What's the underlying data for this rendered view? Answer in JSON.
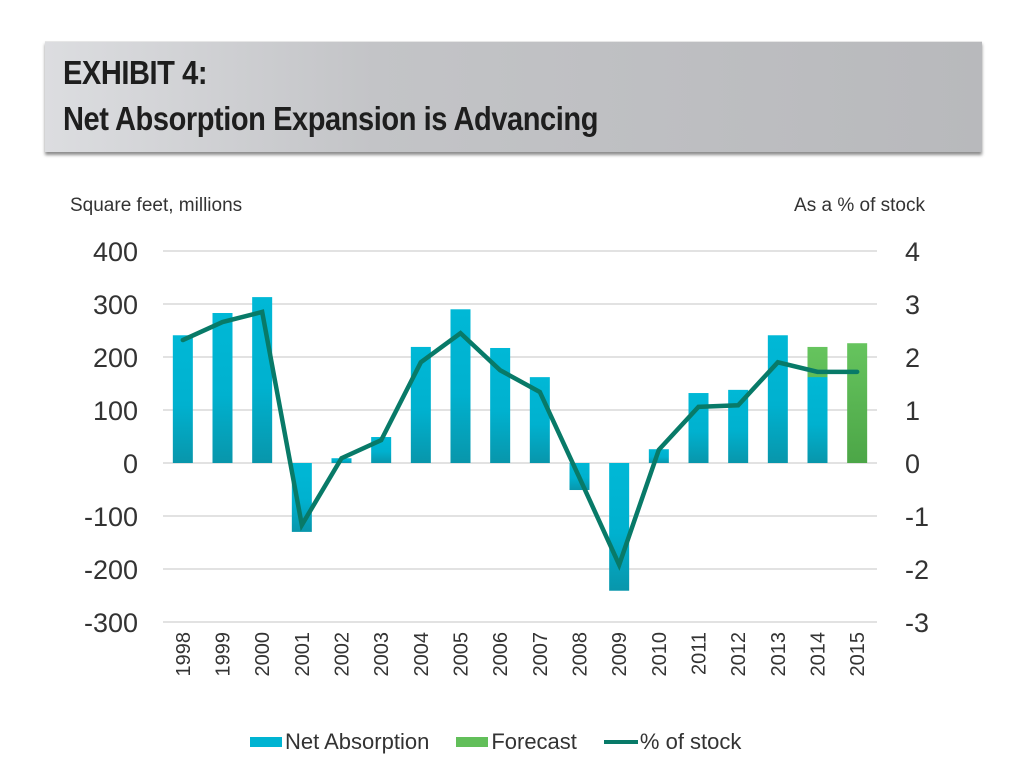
{
  "header": {
    "line1": "EXHIBIT 4:",
    "line2": "Net Absorption Expansion is Advancing"
  },
  "colors": {
    "net_absorption": "#00b4d2",
    "net_absorption_dark": "#0898ae",
    "forecast": "#62bf5a",
    "forecast_dark": "#4ea849",
    "line": "#087a68",
    "grid": "#d9d9d9",
    "text": "#333333"
  },
  "chart_data": {
    "type": "bar",
    "title": "Net Absorption Expansion is Advancing",
    "ylabel": "Square feet, millions",
    "y2label": "As a % of stock",
    "categories": [
      "1998",
      "1999",
      "2000",
      "2001",
      "2002",
      "2003",
      "2004",
      "2005",
      "2006",
      "2007",
      "2008",
      "2009",
      "2010",
      "2011",
      "2012",
      "2013",
      "2014",
      "2015"
    ],
    "ylim": [
      -300,
      400
    ],
    "y_ticks": [
      400,
      300,
      200,
      100,
      0,
      -100,
      -200,
      -300
    ],
    "y2lim": [
      -3,
      4
    ],
    "y2_ticks": [
      4,
      3,
      2,
      1,
      0,
      -1,
      -2,
      -3
    ],
    "grid": true,
    "legend_position": "bottom",
    "series": [
      {
        "name": "Net Absorption",
        "type": "bar",
        "axis": "left",
        "values": [
          241,
          283,
          313,
          -130,
          9,
          49,
          219,
          290,
          217,
          162,
          -51,
          -241,
          26,
          132,
          138,
          241,
          162,
          null
        ]
      },
      {
        "name": "Forecast",
        "type": "bar",
        "axis": "left",
        "values": [
          null,
          null,
          null,
          null,
          null,
          null,
          null,
          null,
          null,
          null,
          null,
          null,
          null,
          null,
          null,
          null,
          219,
          226
        ]
      },
      {
        "name": "% of stock",
        "type": "line",
        "axis": "right",
        "values": [
          2.32,
          2.66,
          2.85,
          -1.17,
          0.09,
          0.43,
          1.9,
          2.45,
          1.75,
          1.34,
          -0.28,
          -1.92,
          0.25,
          1.06,
          1.09,
          1.9,
          1.72,
          1.72
        ]
      }
    ]
  },
  "legend": {
    "items": [
      "Net Absorption",
      "Forecast",
      "% of stock"
    ]
  }
}
